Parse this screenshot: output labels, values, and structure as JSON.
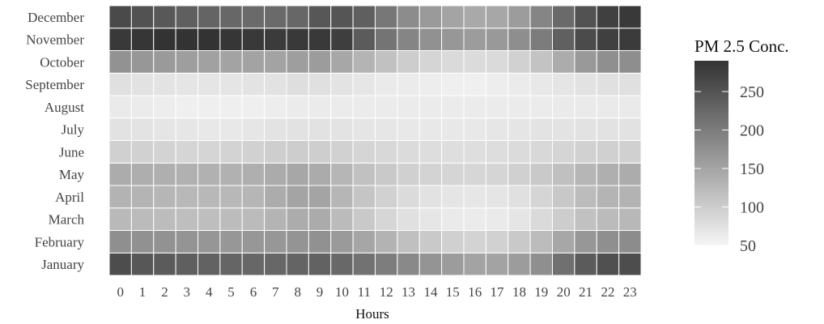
{
  "chart_data": {
    "type": "heatmap",
    "title": "",
    "xlabel": "Hours",
    "ylabel": "",
    "x": [
      0,
      1,
      2,
      3,
      4,
      5,
      6,
      7,
      8,
      9,
      10,
      11,
      12,
      13,
      14,
      15,
      16,
      17,
      18,
      19,
      20,
      21,
      22,
      23
    ],
    "y": [
      "January",
      "February",
      "March",
      "April",
      "May",
      "June",
      "July",
      "August",
      "September",
      "October",
      "November",
      "December"
    ],
    "values": [
      [
        258,
        246,
        240,
        236,
        232,
        228,
        226,
        226,
        230,
        232,
        224,
        212,
        198,
        184,
        170,
        160,
        152,
        152,
        160,
        176,
        214,
        240,
        254,
        258
      ],
      [
        176,
        174,
        172,
        170,
        168,
        166,
        166,
        166,
        170,
        174,
        162,
        148,
        132,
        116,
        104,
        96,
        92,
        94,
        104,
        120,
        146,
        166,
        176,
        180
      ],
      [
        124,
        122,
        120,
        118,
        118,
        120,
        122,
        130,
        140,
        142,
        122,
        104,
        88,
        76,
        68,
        64,
        62,
        64,
        70,
        84,
        100,
        114,
        122,
        126
      ],
      [
        132,
        130,
        128,
        126,
        126,
        126,
        128,
        140,
        150,
        150,
        128,
        110,
        94,
        82,
        74,
        70,
        68,
        70,
        76,
        90,
        106,
        120,
        130,
        132
      ],
      [
        140,
        138,
        136,
        134,
        134,
        134,
        136,
        142,
        146,
        142,
        128,
        114,
        104,
        96,
        92,
        90,
        88,
        90,
        96,
        104,
        116,
        128,
        136,
        140
      ],
      [
        96,
        94,
        92,
        90,
        90,
        92,
        94,
        98,
        100,
        98,
        94,
        90,
        86,
        82,
        80,
        78,
        78,
        80,
        82,
        86,
        90,
        94,
        96,
        96
      ],
      [
        74,
        72,
        70,
        68,
        66,
        66,
        68,
        72,
        74,
        74,
        72,
        70,
        68,
        66,
        66,
        66,
        66,
        68,
        70,
        72,
        72,
        74,
        74,
        74
      ],
      [
        64,
        62,
        60,
        58,
        58,
        58,
        58,
        60,
        62,
        62,
        62,
        62,
        62,
        62,
        62,
        62,
        62,
        62,
        62,
        62,
        64,
        64,
        64,
        64
      ],
      [
        76,
        74,
        72,
        70,
        70,
        70,
        72,
        74,
        78,
        76,
        72,
        68,
        64,
        62,
        60,
        58,
        58,
        60,
        62,
        66,
        70,
        74,
        76,
        76
      ],
      [
        172,
        166,
        162,
        158,
        154,
        152,
        152,
        152,
        158,
        160,
        146,
        130,
        114,
        100,
        90,
        84,
        82,
        84,
        94,
        112,
        140,
        164,
        176,
        178
      ],
      [
        282,
        286,
        290,
        292,
        290,
        286,
        282,
        280,
        282,
        282,
        276,
        240,
        210,
        188,
        174,
        166,
        160,
        164,
        178,
        200,
        234,
        260,
        274,
        280
      ],
      [
        262,
        252,
        244,
        236,
        230,
        226,
        222,
        222,
        226,
        246,
        248,
        236,
        206,
        180,
        162,
        150,
        144,
        146,
        160,
        188,
        222,
        252,
        274,
        282
      ]
    ],
    "colorbar": {
      "title": "PM 2.5 Conc.",
      "min": 50,
      "max": 290,
      "ticks": [
        50,
        100,
        150,
        200,
        250
      ],
      "tick_labels": [
        "50",
        "100",
        "150",
        "200",
        "250"
      ],
      "color_low": "#f5f5f5",
      "color_high": "#333333"
    },
    "grid": false,
    "legend_position": "right"
  }
}
